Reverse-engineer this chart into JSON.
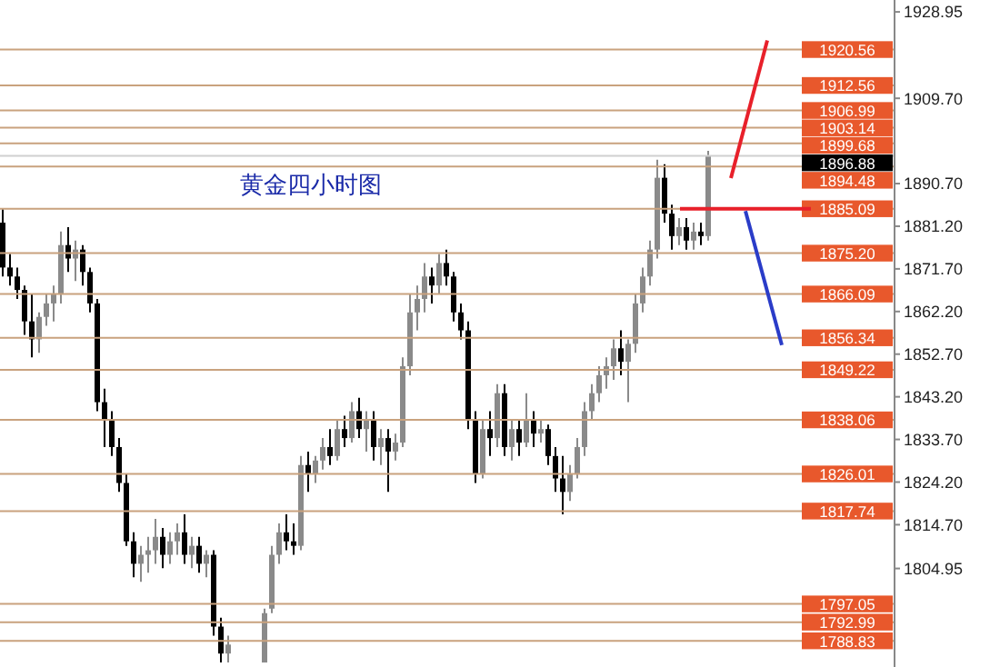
{
  "chart_data": {
    "type": "candlestick",
    "title": "黄金四小时图",
    "categories": [
      null,
      null,
      null,
      null,
      null,
      null,
      null,
      null,
      null,
      null,
      null,
      null,
      null,
      null,
      null,
      null,
      null,
      null,
      null,
      null,
      null,
      null,
      null,
      null,
      null,
      null,
      null,
      null,
      null,
      null,
      null,
      null,
      null,
      null,
      null,
      null,
      null,
      null,
      null,
      null,
      null,
      null,
      null,
      null,
      null,
      null,
      null,
      null,
      null,
      null,
      null,
      null,
      null,
      null,
      null,
      null,
      null,
      null,
      null,
      null,
      null,
      null,
      null,
      null,
      null,
      null,
      null,
      null,
      null,
      null,
      null,
      null,
      null,
      null,
      null,
      null,
      null,
      null,
      null,
      null,
      null,
      null,
      null,
      null,
      null,
      null,
      null,
      null,
      null,
      null,
      null,
      null,
      null,
      null,
      null,
      null,
      null,
      null,
      null,
      null,
      null,
      null,
      null,
      null,
      null,
      null,
      null,
      null,
      null,
      null,
      null,
      null,
      null,
      null,
      null,
      null,
      null,
      null,
      null,
      null,
      null,
      null,
      null
    ],
    "ohlc": [
      [
        1882,
        1885,
        1870,
        1872
      ],
      [
        1872,
        1875,
        1868,
        1870
      ],
      [
        1870,
        1872,
        1865,
        1867
      ],
      [
        1867,
        1868,
        1857,
        1860
      ],
      [
        1860,
        1866,
        1852,
        1856
      ],
      [
        1856,
        1862,
        1853,
        1861
      ],
      [
        1861,
        1866,
        1859,
        1864
      ],
      [
        1864,
        1868,
        1860,
        1866
      ],
      [
        1866,
        1880,
        1864,
        1877
      ],
      [
        1877,
        1881,
        1871,
        1874
      ],
      [
        1874,
        1878,
        1869,
        1876
      ],
      [
        1876,
        1877,
        1868,
        1871
      ],
      [
        1871,
        1872,
        1862,
        1864
      ],
      [
        1864,
        1865,
        1840,
        1842
      ],
      [
        1842,
        1845,
        1832,
        1838
      ],
      [
        1838,
        1840,
        1830,
        1832
      ],
      [
        1832,
        1834,
        1822,
        1824
      ],
      [
        1824,
        1826,
        1810,
        1811
      ],
      [
        1811,
        1813,
        1803,
        1806
      ],
      [
        1806,
        1810,
        1802,
        1808
      ],
      [
        1808,
        1812,
        1804,
        1809
      ],
      [
        1809,
        1816,
        1806,
        1812
      ],
      [
        1812,
        1814,
        1805,
        1808
      ],
      [
        1808,
        1813,
        1806,
        1811
      ],
      [
        1811,
        1815,
        1808,
        1813
      ],
      [
        1813,
        1817,
        1806,
        1808
      ],
      [
        1808,
        1812,
        1805,
        1810
      ],
      [
        1810,
        1812,
        1804,
        1806
      ],
      [
        1806,
        1809,
        1803,
        1808
      ],
      [
        1808,
        1809,
        1790,
        1792
      ],
      [
        1792,
        1794,
        1784,
        1786
      ],
      [
        1786,
        1790,
        1784,
        1788
      ],
      null,
      null,
      null,
      null,
      [
        1784,
        1796,
        1784,
        1795
      ],
      [
        1796,
        1810,
        1795,
        1808
      ],
      [
        1808,
        1815,
        1806,
        1813
      ],
      [
        1813,
        1817,
        1809,
        1811
      ],
      [
        1811,
        1815,
        1808,
        1810
      ],
      [
        1810,
        1830,
        1809,
        1828
      ],
      [
        1828,
        1831,
        1822,
        1826
      ],
      [
        1826,
        1830,
        1824,
        1829
      ],
      [
        1829,
        1834,
        1827,
        1832
      ],
      [
        1832,
        1836,
        1828,
        1830
      ],
      [
        1830,
        1838,
        1829,
        1836
      ],
      [
        1836,
        1839,
        1832,
        1834
      ],
      [
        1834,
        1842,
        1833,
        1840
      ],
      [
        1840,
        1843,
        1834,
        1836
      ],
      [
        1836,
        1840,
        1831,
        1838
      ],
      [
        1838,
        1840,
        1829,
        1832
      ],
      [
        1832,
        1836,
        1828,
        1834
      ],
      [
        1834,
        1836,
        1822,
        1831
      ],
      [
        1831,
        1835,
        1829,
        1833
      ],
      [
        1833,
        1852,
        1832,
        1850
      ],
      [
        1850,
        1866,
        1848,
        1862
      ],
      [
        1862,
        1868,
        1858,
        1865
      ],
      [
        1865,
        1873,
        1862,
        1870
      ],
      [
        1870,
        1872,
        1864,
        1868
      ],
      [
        1868,
        1875,
        1866,
        1873
      ],
      [
        1873,
        1876,
        1868,
        1870
      ],
      [
        1870,
        1871,
        1860,
        1862
      ],
      [
        1862,
        1864,
        1856,
        1858
      ],
      [
        1858,
        1860,
        1836,
        1838
      ],
      [
        1838,
        1840,
        1824,
        1826
      ],
      [
        1826,
        1838,
        1825,
        1836
      ],
      [
        1836,
        1840,
        1830,
        1834
      ],
      [
        1834,
        1846,
        1832,
        1844
      ],
      [
        1844,
        1846,
        1830,
        1832
      ],
      [
        1832,
        1838,
        1829,
        1836
      ],
      [
        1836,
        1838,
        1830,
        1833
      ],
      [
        1833,
        1844,
        1832,
        1838
      ],
      [
        1838,
        1840,
        1832,
        1835
      ],
      [
        1835,
        1838,
        1833,
        1836
      ],
      [
        1836,
        1837,
        1828,
        1830
      ],
      [
        1830,
        1832,
        1822,
        1825
      ],
      [
        1825,
        1830,
        1817,
        1822
      ],
      [
        1822,
        1828,
        1820,
        1826
      ],
      [
        1826,
        1834,
        1825,
        1832
      ],
      [
        1832,
        1842,
        1830,
        1840
      ],
      [
        1840,
        1846,
        1838,
        1844
      ],
      [
        1844,
        1850,
        1842,
        1848
      ],
      [
        1848,
        1852,
        1845,
        1850
      ],
      [
        1850,
        1856,
        1847,
        1854
      ],
      [
        1854,
        1858,
        1848,
        1851
      ],
      [
        1851,
        1856,
        1842,
        1855
      ],
      [
        1855,
        1866,
        1853,
        1864
      ],
      [
        1864,
        1872,
        1862,
        1870
      ],
      [
        1870,
        1878,
        1868,
        1876
      ],
      [
        1876,
        1896,
        1874,
        1892
      ],
      [
        1892,
        1895,
        1882,
        1884
      ],
      [
        1884,
        1886,
        1876,
        1879
      ],
      [
        1879,
        1883,
        1877,
        1881
      ],
      [
        1881,
        1883,
        1876,
        1878
      ],
      [
        1878,
        1882,
        1876,
        1880
      ],
      [
        1880,
        1882,
        1877,
        1879
      ],
      [
        1879,
        1898,
        1878,
        1896.88
      ],
      null,
      null,
      null,
      null,
      null,
      null,
      null,
      null,
      null,
      null,
      null,
      null,
      null,
      null,
      null,
      null,
      null,
      null,
      null,
      null,
      null,
      null,
      null,
      null,
      null
    ],
    "series": [
      {
        "type": "line",
        "color": "#e8202a",
        "values": [
          null,
          null,
          null,
          null,
          null,
          null,
          null,
          null,
          null,
          null,
          null,
          null,
          null,
          null,
          null,
          null,
          null,
          null,
          null,
          null,
          null,
          null,
          null,
          null,
          null,
          null,
          null,
          null,
          null,
          null,
          null,
          null,
          null,
          null,
          null,
          null,
          null,
          null,
          null,
          null,
          null,
          null,
          null,
          null,
          null,
          null,
          null,
          null,
          null,
          null,
          null,
          null,
          null,
          null,
          null,
          null,
          null,
          null,
          null,
          null,
          null,
          null,
          null,
          null,
          null,
          null,
          null,
          null,
          null,
          null,
          null,
          null,
          null,
          null,
          null,
          null,
          null,
          null,
          null,
          null,
          null,
          null,
          null,
          null,
          null,
          null,
          null,
          null,
          null,
          null,
          null,
          null,
          null,
          null,
          null,
          null,
          null,
          null,
          null,
          null,
          1891.9,
          null,
          null,
          null,
          null,
          1922.6,
          null,
          null,
          null,
          null,
          null,
          null,
          null,
          null,
          null,
          null,
          null,
          null,
          null,
          null,
          null,
          null,
          null
        ]
      },
      {
        "type": "line",
        "color": "#e8202a",
        "values": [
          null,
          null,
          null,
          null,
          null,
          null,
          null,
          null,
          null,
          null,
          null,
          null,
          null,
          null,
          null,
          null,
          null,
          null,
          null,
          null,
          null,
          null,
          null,
          null,
          null,
          null,
          null,
          null,
          null,
          null,
          null,
          null,
          null,
          null,
          null,
          null,
          null,
          null,
          null,
          null,
          null,
          null,
          null,
          null,
          null,
          null,
          null,
          null,
          null,
          null,
          null,
          null,
          null,
          null,
          null,
          null,
          null,
          null,
          null,
          null,
          null,
          null,
          null,
          null,
          null,
          null,
          null,
          null,
          null,
          null,
          null,
          null,
          null,
          null,
          null,
          null,
          null,
          null,
          null,
          null,
          null,
          null,
          null,
          null,
          null,
          null,
          null,
          null,
          null,
          null,
          null,
          null,
          null,
          1885.1,
          null,
          null,
          null,
          null,
          null,
          null,
          null,
          null,
          null,
          null,
          null,
          null,
          null,
          null,
          null,
          null,
          null,
          1885.1,
          null,
          null,
          null,
          null,
          null,
          null,
          null,
          null,
          null,
          null,
          null
        ]
      },
      {
        "type": "line",
        "color": "#2a3cc8",
        "values": [
          null,
          null,
          null,
          null,
          null,
          null,
          null,
          null,
          null,
          null,
          null,
          null,
          null,
          null,
          null,
          null,
          null,
          null,
          null,
          null,
          null,
          null,
          null,
          null,
          null,
          null,
          null,
          null,
          null,
          null,
          null,
          null,
          null,
          null,
          null,
          null,
          null,
          null,
          null,
          null,
          null,
          null,
          null,
          null,
          null,
          null,
          null,
          null,
          null,
          null,
          null,
          null,
          null,
          null,
          null,
          null,
          null,
          null,
          null,
          null,
          null,
          null,
          null,
          null,
          null,
          null,
          null,
          null,
          null,
          null,
          null,
          null,
          null,
          null,
          null,
          null,
          null,
          null,
          null,
          null,
          null,
          null,
          null,
          null,
          null,
          null,
          null,
          null,
          null,
          null,
          null,
          null,
          null,
          null,
          null,
          null,
          null,
          null,
          null,
          null,
          null,
          null,
          1884.6,
          null,
          null,
          null,
          null,
          1854.7,
          null,
          null,
          null,
          null,
          null,
          null,
          null,
          null,
          null,
          null,
          null,
          null,
          null,
          null,
          null
        ]
      }
    ],
    "ylim": [
      1783,
      1931.6
    ],
    "yticks": [
      1928.95,
      {
        "value": 1909.7,
        "label": "1909.70"
      },
      {
        "value": 1890.7,
        "label": "1890.70"
      },
      {
        "value": 1881.2,
        "label": "1881.20"
      },
      {
        "value": 1871.7,
        "label": "1871.70"
      },
      {
        "value": 1862.2,
        "label": "1862.20"
      },
      {
        "value": 1852.7,
        "label": "1852.70"
      },
      {
        "value": 1843.2,
        "label": "1843.20"
      },
      {
        "value": 1833.7,
        "label": "1833.70"
      },
      {
        "value": 1824.2,
        "label": "1824.20"
      },
      {
        "value": 1814.7,
        "label": "1814.70"
      },
      1804.95
    ],
    "ref_lines": [
      {
        "axis": "y",
        "value": 1920.56,
        "label": "1920.56",
        "color": "#c9a27e"
      },
      {
        "axis": "y",
        "value": 1912.56,
        "label": "1912.56",
        "color": "#c9a27e"
      },
      {
        "axis": "y",
        "value": 1906.99,
        "label": "1906.99",
        "color": "#c9a27e"
      },
      {
        "axis": "y",
        "value": 1903.14,
        "label": "1903.14",
        "color": "#c9a27e"
      },
      {
        "axis": "y",
        "value": 1899.68,
        "label": "1899.68",
        "color": "#c9a27e"
      },
      {
        "axis": "y",
        "value": 1896.88,
        "label": "1896.88",
        "color": "#d0d0d0"
      },
      {
        "axis": "y",
        "value": 1894.48,
        "label": "1894.48",
        "color": "#c9a27e"
      },
      {
        "axis": "y",
        "value": 1885.09,
        "label": "1885.09",
        "color": "#c9a27e"
      },
      {
        "axis": "y",
        "value": 1875.2,
        "label": "1875.20",
        "color": "#c9a27e"
      },
      {
        "axis": "y",
        "value": 1866.09,
        "label": "1866.09",
        "color": "#c9a27e"
      },
      {
        "axis": "y",
        "value": 1856.34,
        "label": "1856.34",
        "color": "#c9a27e"
      },
      {
        "axis": "y",
        "value": 1849.22,
        "label": "1849.22",
        "color": "#c9a27e"
      },
      {
        "axis": "y",
        "value": 1838.06,
        "label": "1838.06",
        "color": "#c9a27e"
      },
      {
        "axis": "y",
        "value": 1826.01,
        "label": "1826.01",
        "color": "#c9a27e"
      },
      {
        "axis": "y",
        "value": 1817.74,
        "label": "1817.74",
        "color": "#c9a27e"
      },
      {
        "axis": "y",
        "value": 1797.05,
        "label": "1797.05",
        "color": "#c9a27e"
      },
      {
        "axis": "y",
        "value": 1792.99,
        "label": "1792.99",
        "color": "#c9a27e"
      },
      {
        "axis": "y",
        "value": 1788.83,
        "label": "1788.83",
        "color": "#c9a27e"
      }
    ]
  }
}
